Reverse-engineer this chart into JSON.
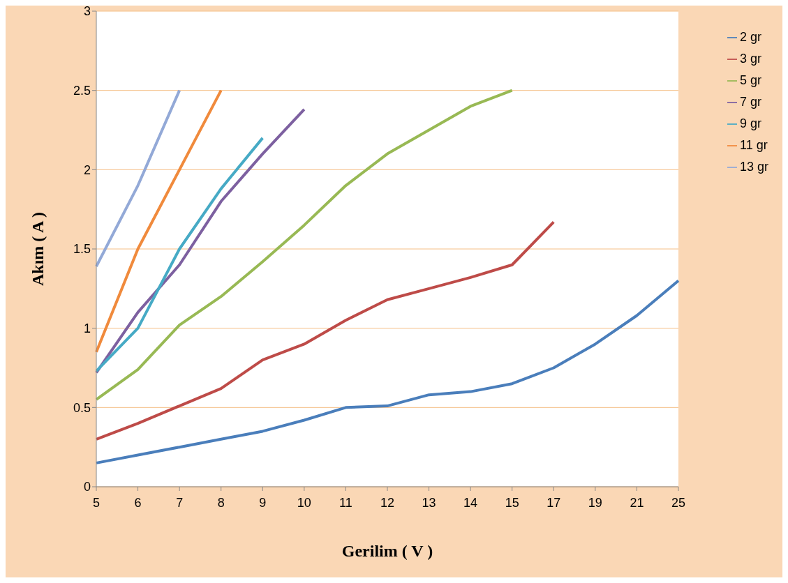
{
  "chart_data": {
    "type": "line",
    "xlabel": "Gerilim ( V )",
    "ylabel": "Akım ( A )",
    "categories": [
      "5",
      "6",
      "7",
      "8",
      "9",
      "10",
      "11",
      "12",
      "13",
      "14",
      "15",
      "17",
      "19",
      "21",
      "25"
    ],
    "series": [
      {
        "name": "2 gr",
        "color": "#4a7ebb",
        "values": [
          0.15,
          0.2,
          0.25,
          0.3,
          0.35,
          0.42,
          0.5,
          0.51,
          0.58,
          0.6,
          0.65,
          0.75,
          0.9,
          1.08,
          1.3
        ]
      },
      {
        "name": "3 gr",
        "color": "#be4b48",
        "values": [
          0.3,
          0.4,
          0.51,
          0.62,
          0.8,
          0.9,
          1.05,
          1.18,
          1.25,
          1.32,
          1.4,
          1.67,
          null,
          null,
          null
        ]
      },
      {
        "name": "5 gr",
        "color": "#98b954",
        "values": [
          0.55,
          0.74,
          1.02,
          1.2,
          1.42,
          1.65,
          1.9,
          2.1,
          2.25,
          2.4,
          2.5,
          null,
          null,
          null,
          null
        ]
      },
      {
        "name": "7 gr",
        "color": "#7d60a0",
        "values": [
          0.72,
          1.1,
          1.4,
          1.8,
          2.1,
          2.38,
          null,
          null,
          null,
          null,
          null,
          null,
          null,
          null,
          null
        ]
      },
      {
        "name": "9 gr",
        "color": "#46aac5",
        "values": [
          0.73,
          1.0,
          1.5,
          1.88,
          2.2,
          null,
          null,
          null,
          null,
          null,
          null,
          null,
          null,
          null,
          null
        ]
      },
      {
        "name": "11 gr",
        "color": "#f08a3c",
        "values": [
          0.85,
          1.5,
          2.0,
          2.5,
          null,
          null,
          null,
          null,
          null,
          null,
          null,
          null,
          null,
          null,
          null
        ]
      },
      {
        "name": "13 gr",
        "color": "#93a9d7",
        "values": [
          1.39,
          1.9,
          2.5,
          null,
          null,
          null,
          null,
          null,
          null,
          null,
          null,
          null,
          null,
          null,
          null
        ]
      }
    ],
    "ylim": [
      0,
      3
    ],
    "yticks": [
      0,
      0.5,
      1,
      1.5,
      2,
      2.5,
      3
    ],
    "grid": "y",
    "legend": "top right",
    "marker": "none",
    "line_style": "solid"
  }
}
